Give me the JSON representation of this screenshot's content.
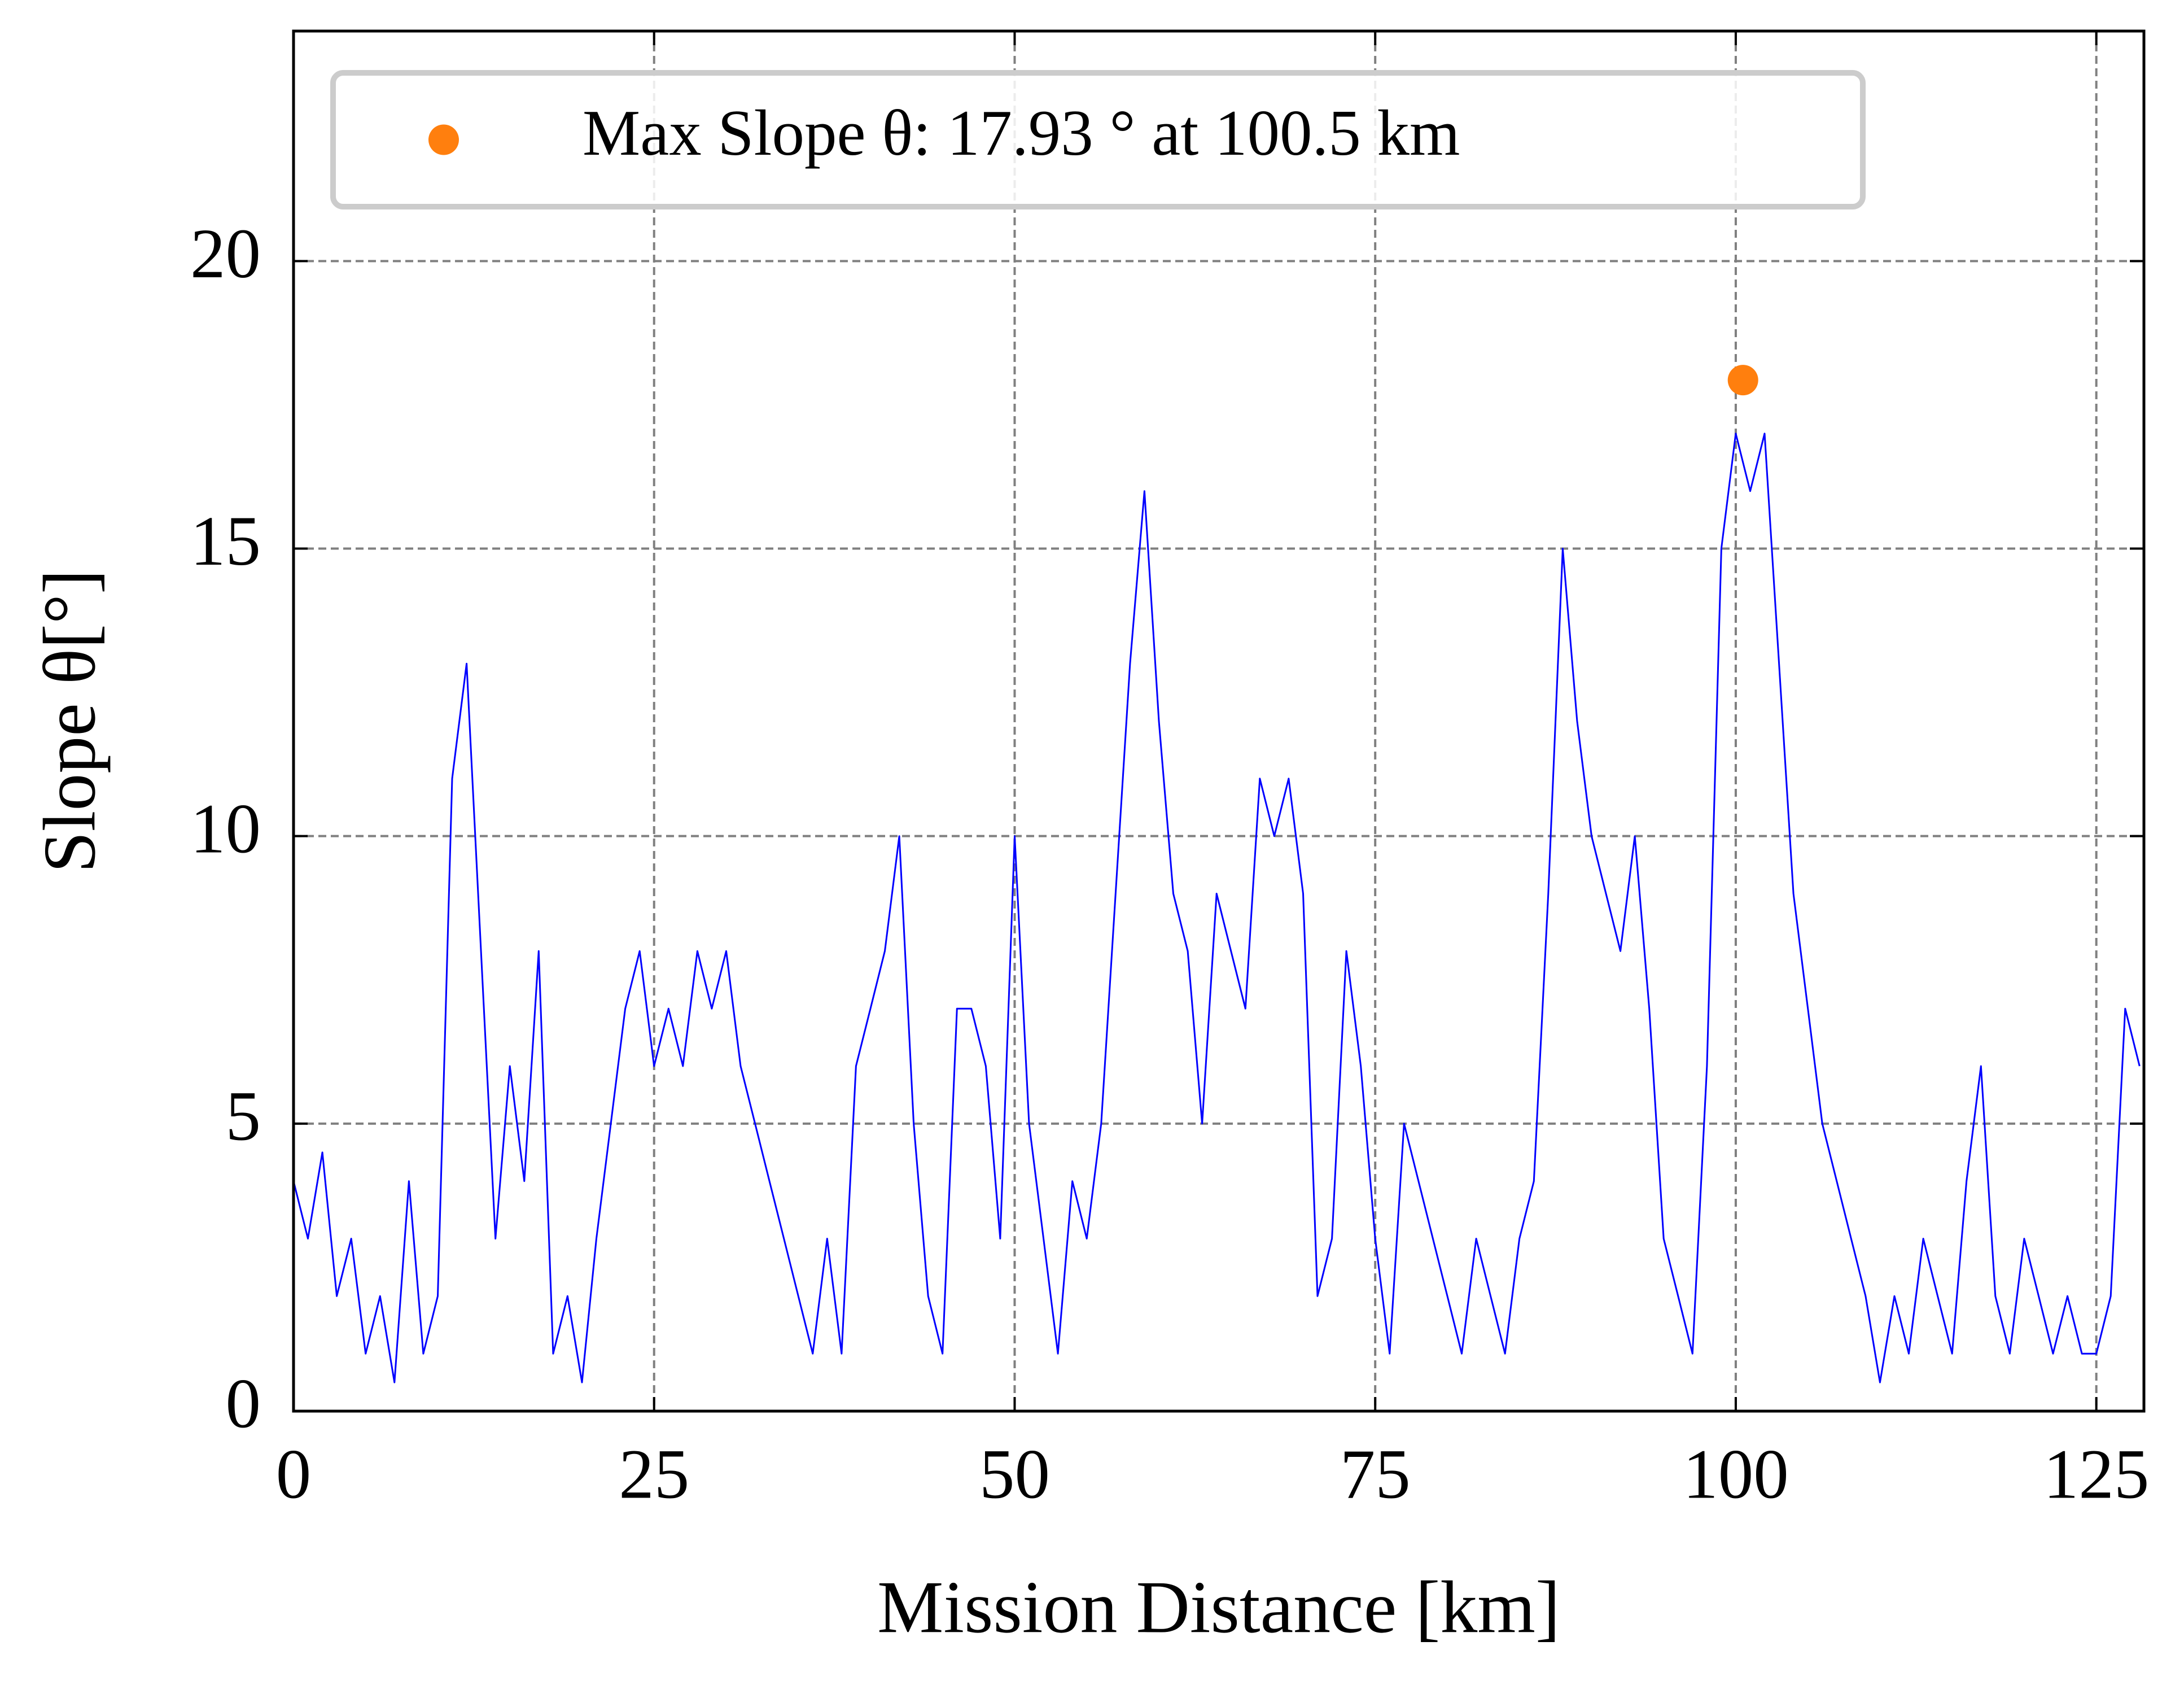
{
  "chart_data": {
    "type": "line",
    "xlabel": "Mission Distance [km]",
    "ylabel": "Slope θ[°]",
    "x": [
      0,
      1,
      2,
      3,
      4,
      5,
      6,
      7,
      8,
      9,
      10,
      11,
      12,
      13,
      14,
      15,
      16,
      17,
      18,
      19,
      20,
      21,
      22,
      23,
      24,
      25,
      26,
      27,
      28,
      29,
      30,
      31,
      32,
      33,
      34,
      35,
      36,
      37,
      38,
      39,
      40,
      41,
      42,
      43,
      44,
      45,
      46,
      47,
      48,
      49,
      50,
      51,
      52,
      53,
      54,
      55,
      56,
      57,
      58,
      59,
      60,
      61,
      62,
      63,
      64,
      65,
      66,
      67,
      68,
      69,
      70,
      71,
      72,
      73,
      74,
      75,
      76,
      77,
      78,
      79,
      80,
      81,
      82,
      83,
      84,
      85,
      86,
      87,
      88,
      89,
      90,
      91,
      92,
      93,
      94,
      95,
      96,
      97,
      98,
      99,
      100,
      101,
      102,
      103,
      104,
      105,
      106,
      107,
      108,
      109,
      110,
      111,
      112,
      113,
      114,
      115,
      116,
      117,
      118,
      119,
      120,
      121,
      122,
      123,
      124,
      125,
      126,
      127,
      128
    ],
    "series": [
      {
        "color": "#0000ff",
        "values": [
          4,
          3,
          4.5,
          2,
          3,
          1,
          2,
          0.5,
          4,
          1,
          2,
          11,
          13,
          8,
          3,
          6,
          4,
          8,
          1,
          2,
          0.5,
          3,
          5,
          7,
          8,
          6,
          7,
          6,
          8,
          7,
          8,
          6,
          5,
          4,
          3,
          2,
          1,
          3,
          1,
          6,
          7,
          8,
          10,
          5,
          2,
          1,
          7,
          7,
          6,
          3,
          10,
          5,
          3,
          1,
          4,
          3,
          5,
          9,
          13,
          16,
          12,
          9,
          8,
          5,
          9,
          8,
          7,
          11,
          10,
          11,
          9,
          2,
          3,
          8,
          6,
          3,
          1,
          5,
          4,
          3,
          2,
          1,
          3,
          2,
          1,
          3,
          4,
          9,
          15,
          12,
          10,
          9,
          8,
          10,
          7,
          3,
          2,
          1,
          6,
          15,
          17,
          16,
          17,
          13,
          9,
          7,
          5,
          4,
          3,
          2,
          0.5,
          2,
          1,
          3,
          2,
          1,
          4,
          6,
          2,
          1,
          3,
          2,
          1,
          2,
          1,
          1,
          2,
          7,
          6
        ]
      },
      {
        "type": "scatter",
        "name": "Max Slope θ: 17.93 ° at 100.5 km",
        "color": "#ff7f0e",
        "x": [
          100.5
        ],
        "values": [
          17.93
        ]
      }
    ],
    "xlim": [
      0,
      128.3
    ],
    "ylim": [
      0,
      24
    ],
    "xticks": [
      0,
      25,
      50,
      75,
      100,
      125
    ],
    "yticks": [
      0,
      5,
      10,
      15,
      20
    ],
    "grid": true,
    "legend": "upper center"
  }
}
